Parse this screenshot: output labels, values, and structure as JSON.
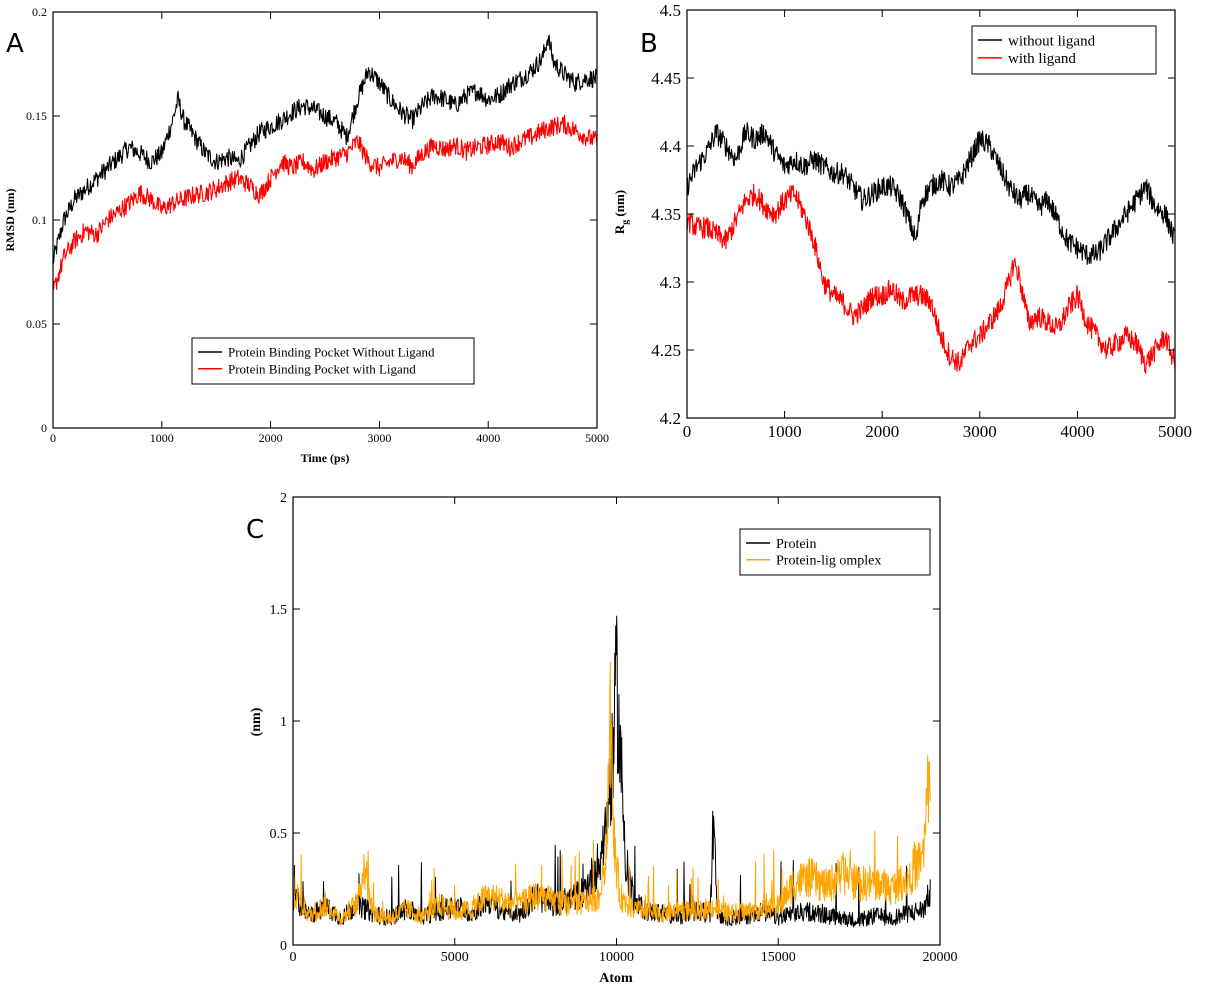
{
  "chart_data": [
    {
      "panel": "A",
      "type": "line",
      "title": "",
      "xlabel": "Time (ps)",
      "ylabel": "RMSD (nm)",
      "xlim": [
        0,
        5000
      ],
      "ylim": [
        0,
        0.2
      ],
      "xticks": [
        "0",
        "1000",
        "2000",
        "3000",
        "4000",
        "5000"
      ],
      "yticks": [
        "0",
        "0.05",
        "0.1",
        "0.15",
        "0.2"
      ],
      "legend_position": "bottom-center",
      "series": [
        {
          "name": "Protein Binding Pocket Without Ligand",
          "color": "#000000",
          "x": [
            0,
            100,
            200,
            300,
            400,
            500,
            600,
            700,
            800,
            900,
            1000,
            1100,
            1150,
            1200,
            1300,
            1400,
            1500,
            1600,
            1700,
            1800,
            1900,
            2000,
            2100,
            2200,
            2300,
            2400,
            2500,
            2600,
            2700,
            2800,
            2900,
            3000,
            3100,
            3200,
            3300,
            3400,
            3500,
            3600,
            3700,
            3800,
            3900,
            4000,
            4100,
            4200,
            4300,
            4400,
            4500,
            4550,
            4600,
            4700,
            4800,
            4900,
            5000
          ],
          "y": [
            0.08,
            0.1,
            0.11,
            0.115,
            0.12,
            0.125,
            0.13,
            0.135,
            0.132,
            0.128,
            0.132,
            0.148,
            0.158,
            0.148,
            0.14,
            0.132,
            0.128,
            0.13,
            0.128,
            0.135,
            0.142,
            0.145,
            0.148,
            0.152,
            0.155,
            0.153,
            0.15,
            0.147,
            0.14,
            0.158,
            0.172,
            0.166,
            0.158,
            0.152,
            0.148,
            0.155,
            0.16,
            0.158,
            0.155,
            0.16,
            0.162,
            0.158,
            0.16,
            0.165,
            0.168,
            0.172,
            0.178,
            0.188,
            0.176,
            0.17,
            0.166,
            0.168,
            0.168
          ]
        },
        {
          "name": "Protein Binding Pocket with Ligand",
          "color": "#ff0000",
          "x": [
            0,
            100,
            200,
            300,
            400,
            500,
            600,
            700,
            800,
            900,
            1000,
            1100,
            1200,
            1300,
            1400,
            1500,
            1600,
            1700,
            1800,
            1900,
            2000,
            2100,
            2200,
            2300,
            2400,
            2500,
            2600,
            2700,
            2800,
            2900,
            3000,
            3100,
            3200,
            3300,
            3400,
            3500,
            3600,
            3700,
            3800,
            3900,
            4000,
            4100,
            4200,
            4300,
            4400,
            4500,
            4600,
            4700,
            4800,
            4900,
            5000
          ],
          "y": [
            0.065,
            0.082,
            0.09,
            0.095,
            0.093,
            0.1,
            0.104,
            0.108,
            0.113,
            0.11,
            0.105,
            0.108,
            0.11,
            0.112,
            0.113,
            0.115,
            0.118,
            0.12,
            0.117,
            0.112,
            0.12,
            0.128,
            0.125,
            0.128,
            0.124,
            0.128,
            0.13,
            0.132,
            0.138,
            0.128,
            0.125,
            0.128,
            0.13,
            0.126,
            0.132,
            0.136,
            0.134,
            0.136,
            0.133,
            0.135,
            0.136,
            0.138,
            0.135,
            0.138,
            0.14,
            0.143,
            0.145,
            0.146,
            0.143,
            0.14,
            0.138
          ]
        }
      ]
    },
    {
      "panel": "B",
      "type": "line",
      "title": "",
      "xlabel": "",
      "ylabel": "Rg (nm)",
      "ylabel_main": "R",
      "ylabel_sub": "g",
      "ylabel_tail": " (nm)",
      "xlim": [
        0,
        5000
      ],
      "ylim": [
        4.2,
        4.5
      ],
      "xticks": [
        "0",
        "1000",
        "2000",
        "3000",
        "4000",
        "5000"
      ],
      "yticks": [
        "4.2",
        "4.25",
        "4.3",
        "4.35",
        "4.4",
        "4.45",
        "4.5"
      ],
      "legend_position": "top-right",
      "series": [
        {
          "name": "without ligand",
          "color": "#000000",
          "x": [
            0,
            100,
            200,
            300,
            400,
            500,
            600,
            700,
            800,
            900,
            1000,
            1100,
            1200,
            1300,
            1400,
            1500,
            1600,
            1700,
            1800,
            1900,
            2000,
            2100,
            2200,
            2300,
            2350,
            2400,
            2500,
            2600,
            2700,
            2800,
            2900,
            3000,
            3100,
            3200,
            3300,
            3400,
            3500,
            3600,
            3700,
            3800,
            3900,
            4000,
            4100,
            4200,
            4300,
            4400,
            4500,
            4600,
            4700,
            4800,
            4900,
            5000
          ],
          "y": [
            4.37,
            4.385,
            4.395,
            4.41,
            4.4,
            4.39,
            4.41,
            4.405,
            4.41,
            4.395,
            4.385,
            4.39,
            4.385,
            4.39,
            4.385,
            4.38,
            4.38,
            4.37,
            4.36,
            4.365,
            4.37,
            4.37,
            4.36,
            4.34,
            4.33,
            4.36,
            4.37,
            4.375,
            4.37,
            4.375,
            4.39,
            4.405,
            4.4,
            4.385,
            4.37,
            4.36,
            4.365,
            4.355,
            4.36,
            4.345,
            4.33,
            4.325,
            4.32,
            4.32,
            4.33,
            4.34,
            4.35,
            4.36,
            4.37,
            4.355,
            4.35,
            4.33
          ]
        },
        {
          "name": "with ligand",
          "color": "#ff0000",
          "x": [
            0,
            100,
            200,
            300,
            400,
            500,
            600,
            700,
            800,
            900,
            1000,
            1100,
            1200,
            1300,
            1400,
            1500,
            1600,
            1700,
            1800,
            1900,
            2000,
            2100,
            2200,
            2300,
            2400,
            2500,
            2600,
            2700,
            2800,
            2900,
            3000,
            3100,
            3200,
            3300,
            3350,
            3400,
            3500,
            3600,
            3700,
            3800,
            3900,
            4000,
            4100,
            4200,
            4300,
            4400,
            4500,
            4600,
            4700,
            4800,
            4900,
            5000
          ],
          "y": [
            4.345,
            4.34,
            4.34,
            4.335,
            4.33,
            4.345,
            4.36,
            4.365,
            4.355,
            4.35,
            4.36,
            4.365,
            4.35,
            4.33,
            4.3,
            4.29,
            4.285,
            4.275,
            4.28,
            4.29,
            4.29,
            4.295,
            4.285,
            4.29,
            4.29,
            4.285,
            4.26,
            4.245,
            4.24,
            4.255,
            4.26,
            4.27,
            4.28,
            4.3,
            4.315,
            4.305,
            4.27,
            4.275,
            4.27,
            4.265,
            4.28,
            4.29,
            4.27,
            4.26,
            4.25,
            4.255,
            4.26,
            4.255,
            4.24,
            4.25,
            4.26,
            4.24
          ]
        }
      ]
    },
    {
      "panel": "C",
      "type": "line",
      "title": "",
      "xlabel": "Atom",
      "ylabel": "(nm)",
      "xlim": [
        0,
        20000
      ],
      "ylim": [
        0,
        2
      ],
      "xticks": [
        "0",
        "5000",
        "10000",
        "15000",
        "20000"
      ],
      "yticks": [
        "0",
        "0.5",
        "1",
        "1.5",
        "2"
      ],
      "legend_position": "top-right",
      "series": [
        {
          "name": "Protein",
          "color": "#000000",
          "x": [
            0,
            500,
            1000,
            1500,
            2000,
            2500,
            3000,
            3500,
            4000,
            4500,
            5000,
            5500,
            6000,
            6500,
            7000,
            7500,
            8000,
            8500,
            9000,
            9500,
            9700,
            9900,
            10000,
            10100,
            10300,
            10600,
            11000,
            11500,
            12000,
            12500,
            12900,
            13000,
            13100,
            13500,
            14000,
            14500,
            15000,
            15500,
            16000,
            16500,
            17000,
            17500,
            18000,
            18500,
            19000,
            19500,
            19700
          ],
          "y": [
            0.22,
            0.13,
            0.17,
            0.12,
            0.18,
            0.14,
            0.12,
            0.16,
            0.13,
            0.15,
            0.18,
            0.14,
            0.2,
            0.15,
            0.14,
            0.22,
            0.18,
            0.2,
            0.24,
            0.38,
            0.55,
            0.85,
            1.18,
            0.9,
            0.35,
            0.18,
            0.15,
            0.14,
            0.13,
            0.15,
            0.14,
            0.6,
            0.14,
            0.12,
            0.13,
            0.15,
            0.12,
            0.14,
            0.15,
            0.13,
            0.12,
            0.11,
            0.13,
            0.12,
            0.14,
            0.16,
            0.24
          ]
        },
        {
          "name": "Protein-lig omplex",
          "color": "#ffa500",
          "x": [
            0,
            500,
            1000,
            1500,
            2000,
            2200,
            2500,
            3000,
            3500,
            4000,
            4500,
            5000,
            5500,
            6000,
            6500,
            7000,
            7500,
            8000,
            8500,
            9000,
            9500,
            9700,
            9800,
            9900,
            10100,
            10500,
            11000,
            11500,
            12000,
            12500,
            13000,
            13500,
            14000,
            14500,
            15000,
            15500,
            16000,
            16500,
            17000,
            17500,
            18000,
            18500,
            19000,
            19500,
            19700
          ],
          "y": [
            0.25,
            0.13,
            0.18,
            0.12,
            0.19,
            0.36,
            0.14,
            0.12,
            0.16,
            0.13,
            0.18,
            0.15,
            0.16,
            0.22,
            0.2,
            0.18,
            0.22,
            0.2,
            0.18,
            0.19,
            0.22,
            0.45,
            1.1,
            0.5,
            0.22,
            0.16,
            0.15,
            0.14,
            0.16,
            0.15,
            0.17,
            0.14,
            0.15,
            0.16,
            0.17,
            0.28,
            0.3,
            0.26,
            0.32,
            0.27,
            0.28,
            0.25,
            0.3,
            0.4,
            0.88
          ]
        }
      ]
    }
  ]
}
